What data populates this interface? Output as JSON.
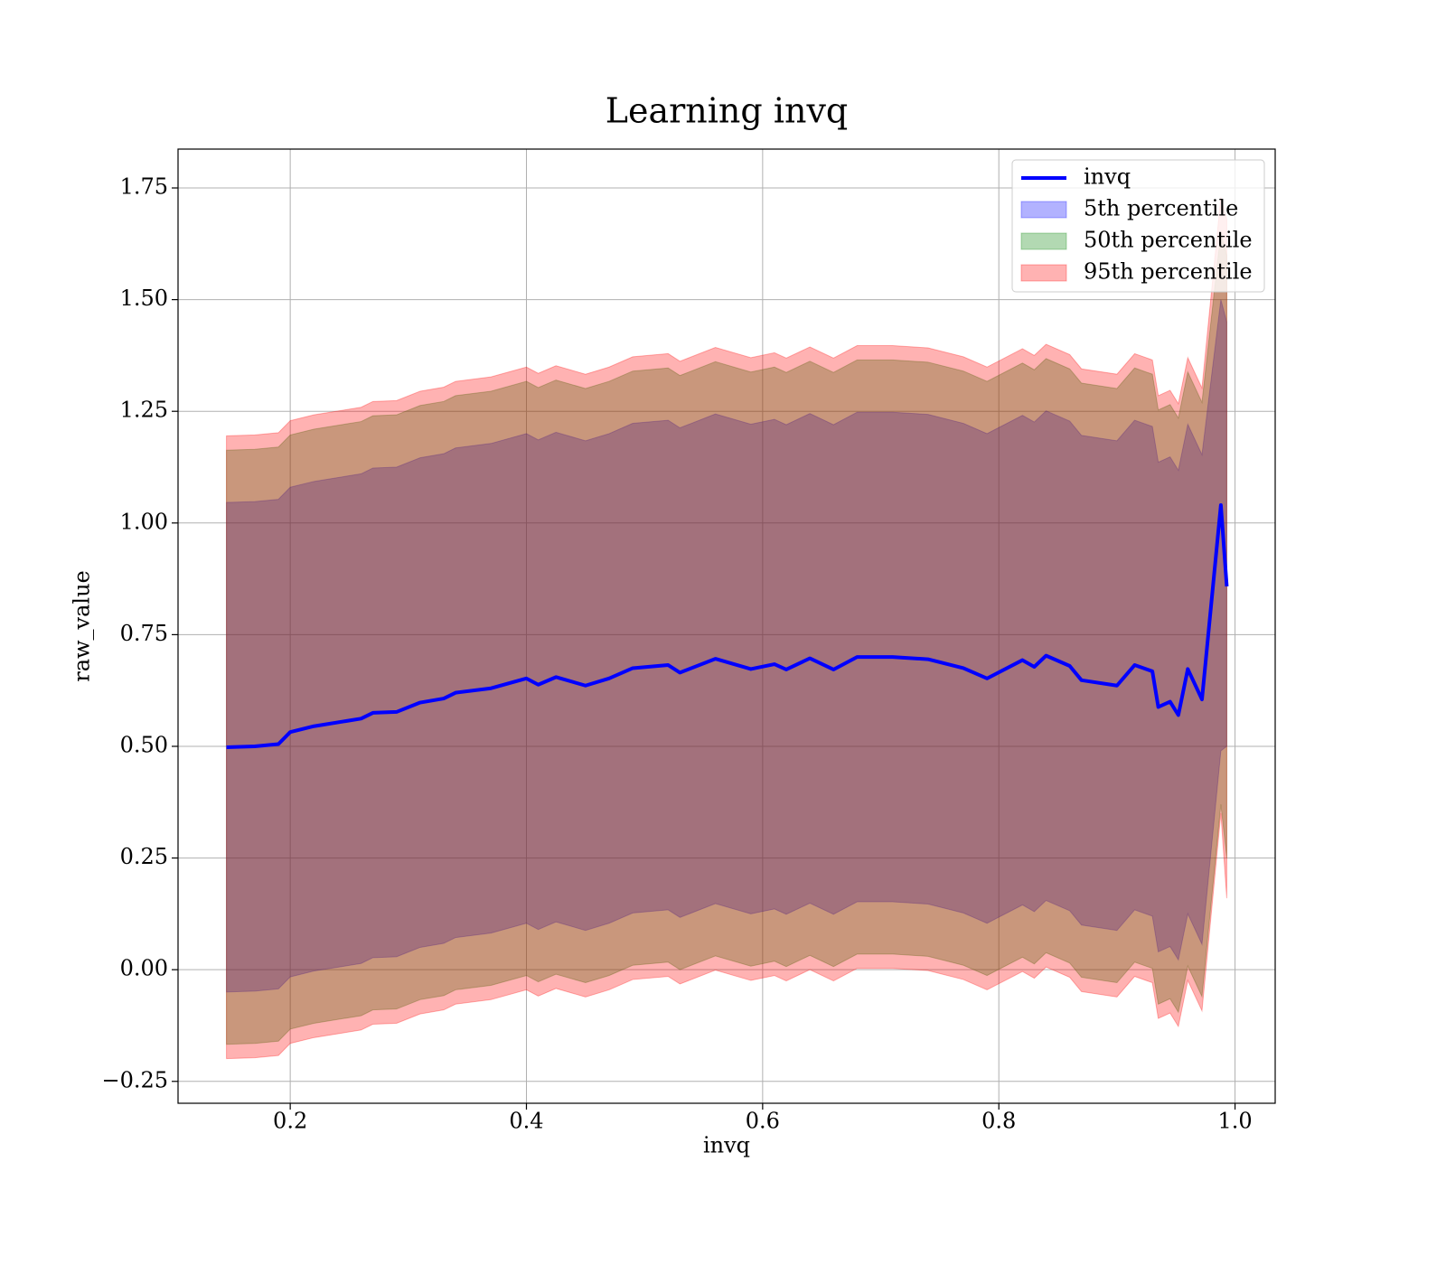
{
  "chart_data": {
    "type": "line-band",
    "title": "Learning invq",
    "x_label": "invq",
    "y_label": "raw_value",
    "xlim": [
      0.105,
      1.034
    ],
    "ylim": [
      -0.299,
      1.837
    ],
    "xticks": [
      0.2,
      0.4,
      0.6,
      0.8,
      {
        "value": 1.0,
        "label": "1.0"
      }
    ],
    "yticks": [
      {
        "value": -0.25,
        "label": "−0.25"
      },
      {
        "value": 0,
        "label": "0.00"
      },
      {
        "value": 0.25,
        "label": "0.25"
      },
      {
        "value": 0.5,
        "label": "0.50"
      },
      {
        "value": 0.75,
        "label": "0.75"
      },
      {
        "value": 1.0,
        "label": "1.00"
      },
      {
        "value": 1.25,
        "label": "1.25"
      },
      {
        "value": 1.5,
        "label": "1.50"
      },
      {
        "value": 1.75,
        "label": "1.75"
      }
    ],
    "grid": true,
    "legend": "upper right",
    "x": [
      0.146,
      0.17,
      0.19,
      0.2,
      0.22,
      0.26,
      0.27,
      0.29,
      0.31,
      0.33,
      0.34,
      0.37,
      0.4,
      0.41,
      0.425,
      0.45,
      0.47,
      0.49,
      0.52,
      0.53,
      0.56,
      0.59,
      0.61,
      0.62,
      0.64,
      0.66,
      0.68,
      0.71,
      0.74,
      0.77,
      0.79,
      0.82,
      0.83,
      0.84,
      0.86,
      0.87,
      0.9,
      0.915,
      0.93,
      0.935,
      0.945,
      0.952,
      0.96,
      0.972,
      0.988,
      0.993
    ],
    "series": [
      {
        "name": "invq",
        "color": "#0000ff",
        "values": [
          0.498,
          0.5,
          0.505,
          0.532,
          0.545,
          0.562,
          0.575,
          0.577,
          0.598,
          0.607,
          0.62,
          0.63,
          0.652,
          0.638,
          0.655,
          0.636,
          0.652,
          0.675,
          0.682,
          0.665,
          0.696,
          0.673,
          0.684,
          0.672,
          0.697,
          0.672,
          0.7,
          0.7,
          0.695,
          0.675,
          0.652,
          0.693,
          0.678,
          0.703,
          0.68,
          0.648,
          0.636,
          0.682,
          0.668,
          0.588,
          0.6,
          0.57,
          0.673,
          0.605,
          1.04,
          0.858
        ]
      }
    ],
    "bands": [
      {
        "name": "5th percentile",
        "color": "#0000ff",
        "alpha": 0.3,
        "lower": [
          -0.05,
          -0.048,
          -0.043,
          -0.016,
          -0.003,
          0.014,
          0.027,
          0.029,
          0.05,
          0.059,
          0.072,
          0.082,
          0.104,
          0.09,
          0.107,
          0.088,
          0.104,
          0.127,
          0.134,
          0.117,
          0.148,
          0.125,
          0.136,
          0.124,
          0.149,
          0.124,
          0.152,
          0.152,
          0.147,
          0.127,
          0.104,
          0.145,
          0.13,
          0.155,
          0.132,
          0.1,
          0.088,
          0.134,
          0.12,
          0.04,
          0.052,
          0.022,
          0.125,
          0.057,
          0.49,
          0.5
        ],
        "upper": [
          1.046,
          1.048,
          1.053,
          1.08,
          1.093,
          1.11,
          1.123,
          1.125,
          1.146,
          1.155,
          1.168,
          1.178,
          1.2,
          1.186,
          1.203,
          1.184,
          1.2,
          1.223,
          1.23,
          1.213,
          1.244,
          1.221,
          1.232,
          1.22,
          1.245,
          1.22,
          1.248,
          1.248,
          1.243,
          1.223,
          1.2,
          1.241,
          1.226,
          1.251,
          1.228,
          1.196,
          1.184,
          1.23,
          1.216,
          1.136,
          1.148,
          1.118,
          1.221,
          1.153,
          1.5,
          1.45
        ]
      },
      {
        "name": "50th percentile",
        "color": "#008000",
        "alpha": 0.3,
        "lower": [
          -0.167,
          -0.165,
          -0.16,
          -0.133,
          -0.12,
          -0.103,
          -0.09,
          -0.088,
          -0.067,
          -0.058,
          -0.045,
          -0.035,
          -0.013,
          -0.027,
          -0.01,
          -0.029,
          -0.013,
          0.01,
          0.017,
          0,
          0.031,
          0.008,
          0.019,
          0.007,
          0.032,
          0.007,
          0.035,
          0.035,
          0.03,
          0.01,
          -0.013,
          0.028,
          0.013,
          0.038,
          0.015,
          -0.017,
          -0.029,
          0.017,
          0.003,
          -0.077,
          -0.065,
          -0.095,
          0.008,
          -0.06,
          0.37,
          0.25
        ],
        "upper": [
          1.163,
          1.165,
          1.17,
          1.197,
          1.21,
          1.227,
          1.24,
          1.242,
          1.263,
          1.272,
          1.285,
          1.295,
          1.317,
          1.303,
          1.32,
          1.301,
          1.317,
          1.34,
          1.347,
          1.33,
          1.361,
          1.338,
          1.349,
          1.337,
          1.362,
          1.337,
          1.365,
          1.365,
          1.36,
          1.34,
          1.317,
          1.358,
          1.343,
          1.368,
          1.345,
          1.313,
          1.301,
          1.347,
          1.333,
          1.253,
          1.265,
          1.235,
          1.338,
          1.27,
          1.65,
          1.6
        ]
      },
      {
        "name": "95th percentile",
        "color": "#ff0000",
        "alpha": 0.3,
        "lower": [
          -0.199,
          -0.197,
          -0.192,
          -0.165,
          -0.152,
          -0.135,
          -0.122,
          -0.12,
          -0.099,
          -0.09,
          -0.077,
          -0.067,
          -0.045,
          -0.059,
          -0.042,
          -0.061,
          -0.045,
          -0.022,
          -0.015,
          -0.032,
          -0.001,
          -0.024,
          -0.013,
          -0.025,
          0,
          -0.025,
          0.003,
          0.003,
          -0.002,
          -0.022,
          -0.045,
          -0.004,
          -0.019,
          0.006,
          -0.017,
          -0.049,
          -0.061,
          -0.015,
          -0.029,
          -0.109,
          -0.097,
          -0.127,
          -0.024,
          -0.092,
          0.35,
          0.16
        ],
        "upper": [
          1.195,
          1.197,
          1.202,
          1.229,
          1.242,
          1.259,
          1.272,
          1.274,
          1.295,
          1.304,
          1.317,
          1.327,
          1.349,
          1.335,
          1.352,
          1.333,
          1.349,
          1.372,
          1.379,
          1.362,
          1.393,
          1.37,
          1.381,
          1.369,
          1.394,
          1.369,
          1.397,
          1.397,
          1.392,
          1.372,
          1.349,
          1.39,
          1.375,
          1.4,
          1.377,
          1.345,
          1.333,
          1.379,
          1.365,
          1.285,
          1.297,
          1.267,
          1.37,
          1.302,
          1.73,
          1.68
        ]
      }
    ]
  }
}
